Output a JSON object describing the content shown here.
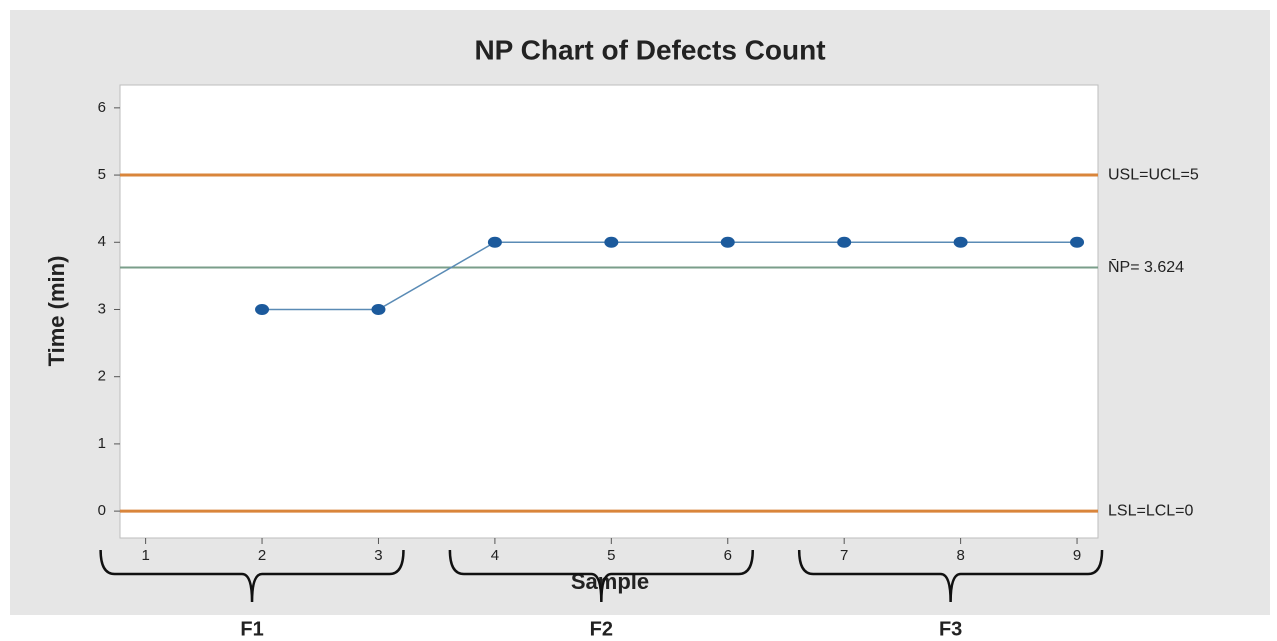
{
  "chart_data": {
    "type": "line",
    "title": "NP Chart of Defects Count",
    "x_label": "Sample",
    "y_label": "Time (min)",
    "x": [
      1,
      2,
      3,
      4,
      5,
      6,
      7,
      8,
      9
    ],
    "series": [
      {
        "name": "Defects Count",
        "color": "#1c5a9c",
        "line_color": "#5a8bb5",
        "values": [
          null,
          3,
          3,
          4,
          4,
          4,
          4,
          4,
          4
        ]
      }
    ],
    "xlim": [
      0.78,
      9.18
    ],
    "ylim": [
      -0.4,
      6.34
    ],
    "xticks": [
      1,
      2,
      3,
      4,
      5,
      6,
      7,
      8,
      9
    ],
    "yticks": [
      0,
      1,
      2,
      3,
      4,
      5,
      6
    ],
    "reference_lines": [
      {
        "value": 5,
        "label": "USL=UCL=5",
        "color": "#d9853b"
      },
      {
        "value": 3.624,
        "label": "N̄P=  3.624",
        "color": "#7a9e8a"
      },
      {
        "value": 0,
        "label": "LSL=LCL=0",
        "color": "#d9853b"
      }
    ],
    "groups": [
      {
        "label": "F1",
        "start": 1,
        "end": 3
      },
      {
        "label": "F2",
        "start": 4,
        "end": 6
      },
      {
        "label": "F3",
        "start": 7,
        "end": 9
      }
    ]
  }
}
